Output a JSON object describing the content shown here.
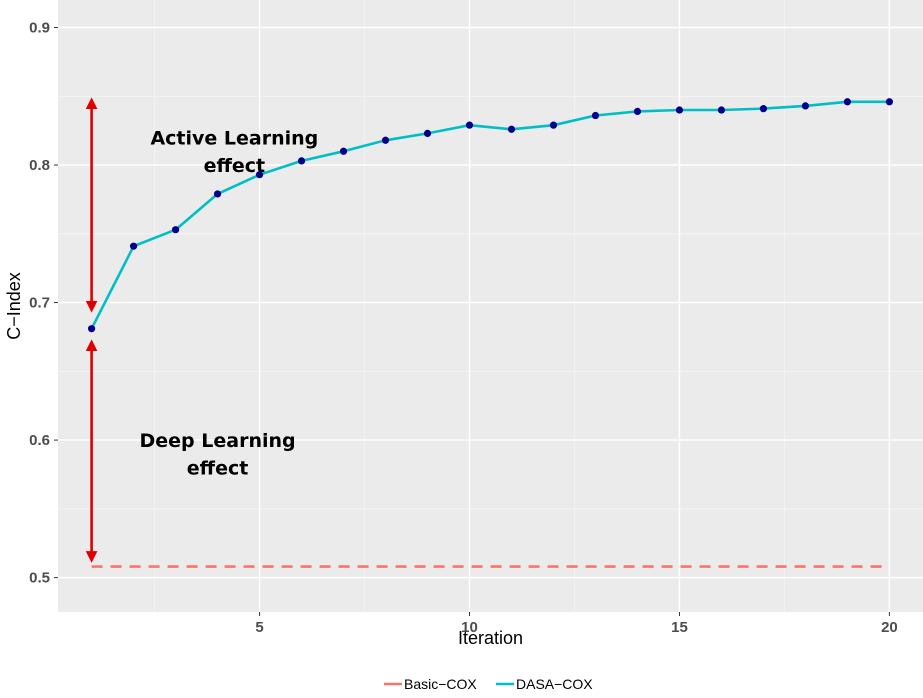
{
  "chart_data": {
    "type": "line",
    "title": "",
    "xlabel": "Iteration",
    "ylabel": "C−Index",
    "xlim": [
      0.2,
      20.8
    ],
    "ylim": [
      0.475,
      0.92
    ],
    "x_ticks": [
      5,
      10,
      15,
      20
    ],
    "x_tick_labels": [
      "5",
      "10",
      "15",
      "20"
    ],
    "y_ticks": [
      0.5,
      0.6,
      0.7,
      0.8,
      0.9
    ],
    "y_tick_labels": [
      "0.5",
      "0.6",
      "0.7",
      "0.8",
      "0.9"
    ],
    "grid": true,
    "legend_position": "bottom",
    "series": [
      {
        "name": "Basic−COX",
        "color": "#F8766D",
        "style": "dashed",
        "x": [
          1,
          20
        ],
        "values": [
          0.508,
          0.508
        ]
      },
      {
        "name": "DASA−COX",
        "color": "#00BFC4",
        "marker_color": "#00008B",
        "style": "solid",
        "x": [
          1,
          2,
          3,
          4,
          5,
          6,
          7,
          8,
          9,
          10,
          11,
          12,
          13,
          14,
          15,
          16,
          17,
          18,
          19,
          20
        ],
        "values": [
          0.681,
          0.741,
          0.753,
          0.779,
          0.793,
          0.803,
          0.81,
          0.818,
          0.823,
          0.829,
          0.826,
          0.829,
          0.836,
          0.839,
          0.84,
          0.84,
          0.841,
          0.843,
          0.846,
          0.846
        ]
      }
    ],
    "annotations": [
      {
        "lines": [
          "Active Learning",
          "effect"
        ],
        "arrow_x": 1,
        "arrow_from": 0.697,
        "arrow_to": 0.845,
        "text_x": 4.4,
        "text_y_lines": [
          0.82,
          0.8
        ]
      },
      {
        "lines": [
          "Deep Learning",
          "effect"
        ],
        "arrow_x": 1,
        "arrow_from": 0.515,
        "arrow_to": 0.669,
        "text_x": 4.0,
        "text_y_lines": [
          0.6,
          0.58
        ]
      }
    ],
    "arrow_color": "#E00000"
  }
}
